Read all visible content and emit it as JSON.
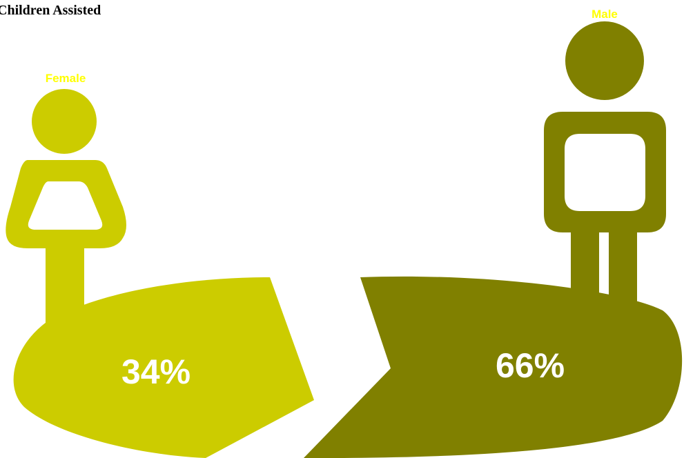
{
  "chart_data": {
    "type": "pie",
    "title": "Children Assisted",
    "categories": [
      "Female",
      "Male"
    ],
    "values": [
      34,
      66
    ],
    "value_labels": [
      "34%",
      "66%"
    ],
    "series": [
      {
        "name": "Female",
        "value": 34,
        "label": "34%",
        "color": "#cccc00"
      },
      {
        "name": "Male",
        "value": 66,
        "label": "66%",
        "color": "#808000"
      }
    ],
    "label_color": "#ffff00",
    "legend": "none"
  }
}
